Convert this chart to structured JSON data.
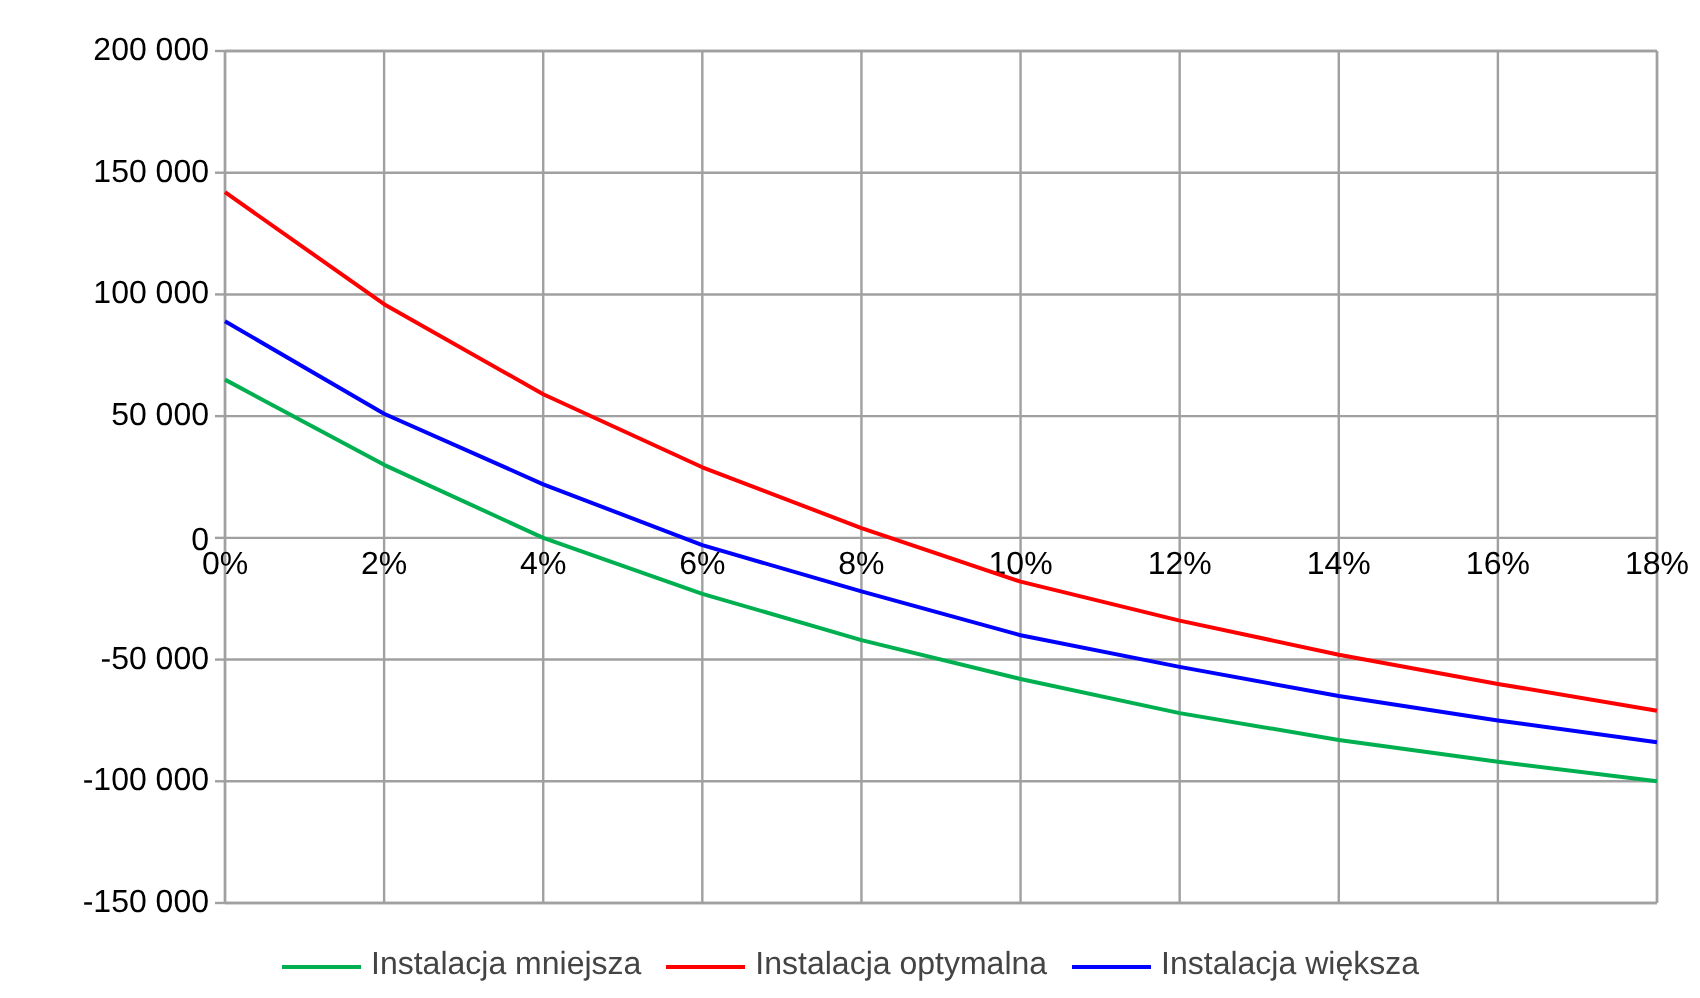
{
  "chart_data": {
    "type": "line",
    "x": [
      0,
      2,
      4,
      6,
      8,
      10,
      12,
      14,
      16,
      18
    ],
    "series": [
      {
        "name": "Instalacja mniejsza",
        "color": "#00b050",
        "values": [
          65000,
          30000,
          0,
          -23000,
          -42000,
          -58000,
          -72000,
          -83000,
          -92000,
          -100000
        ]
      },
      {
        "name": "Instalacja optymalna",
        "color": "#ff0000",
        "values": [
          142000,
          96000,
          59000,
          29000,
          4000,
          -18000,
          -34000,
          -48000,
          -60000,
          -71000
        ]
      },
      {
        "name": "Instalacja większa",
        "color": "#0000ff",
        "values": [
          89000,
          51000,
          22000,
          -3000,
          -22000,
          -40000,
          -53000,
          -65000,
          -75000,
          -84000
        ]
      }
    ],
    "xlim": [
      0,
      18
    ],
    "ylim": [
      -150000,
      200000
    ],
    "xticks": [
      {
        "value": 0,
        "label": "0%"
      },
      {
        "value": 2,
        "label": "2%"
      },
      {
        "value": 4,
        "label": "4%"
      },
      {
        "value": 6,
        "label": "6%"
      },
      {
        "value": 8,
        "label": "8%"
      },
      {
        "value": 10,
        "label": "10%"
      },
      {
        "value": 12,
        "label": "12%"
      },
      {
        "value": 14,
        "label": "14%"
      },
      {
        "value": 16,
        "label": "16%"
      },
      {
        "value": 18,
        "label": "18%"
      }
    ],
    "yticks": [
      {
        "value": -150000,
        "label": "-150 000"
      },
      {
        "value": -100000,
        "label": "-100 000"
      },
      {
        "value": -50000,
        "label": "-50 000"
      },
      {
        "value": 0,
        "label": "0"
      },
      {
        "value": 50000,
        "label": "50 000"
      },
      {
        "value": 100000,
        "label": "100 000"
      },
      {
        "value": 150000,
        "label": "150 000"
      },
      {
        "value": 200000,
        "label": "200 000"
      }
    ],
    "grid": true,
    "legend": "bottom",
    "line_style": "solid"
  }
}
